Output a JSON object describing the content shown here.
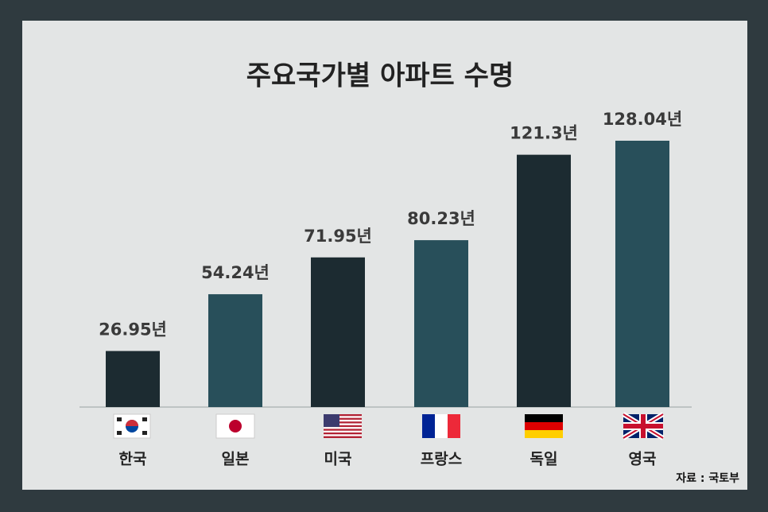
{
  "chart_data": {
    "type": "bar",
    "title": "주요국가별 아파트 수명",
    "categories": [
      "한국",
      "일본",
      "미국",
      "프랑스",
      "독일",
      "영국"
    ],
    "values": [
      26.95,
      54.24,
      71.95,
      80.23,
      121.3,
      128.04
    ],
    "value_labels": [
      "26.95년",
      "54.24년",
      "71.95년",
      "80.23년",
      "121.3년",
      "128.04년"
    ],
    "colors": [
      "#1c2b31",
      "#284f5a",
      "#1c2b31",
      "#284f5a",
      "#1c2b31",
      "#284f5a"
    ],
    "source": "자료 : 국토부"
  }
}
